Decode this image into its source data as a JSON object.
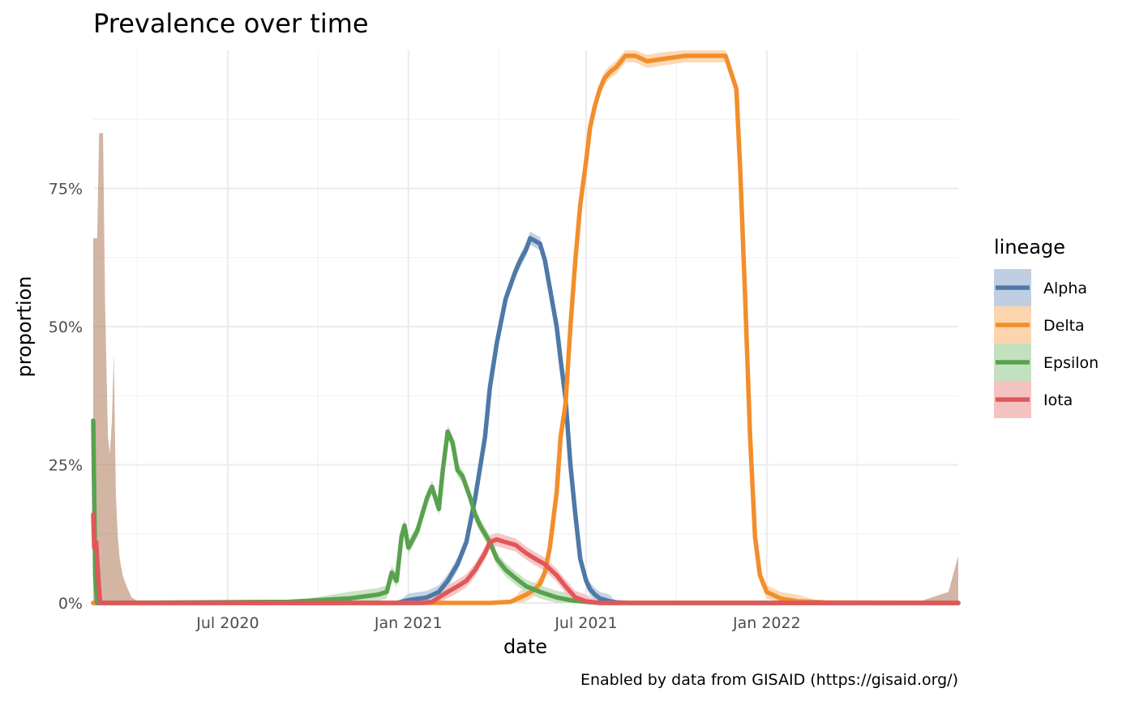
{
  "chart_data": {
    "type": "line",
    "title": "Prevalence over time",
    "xlabel": "date",
    "ylabel": "proportion",
    "caption": "Enabled by data from GISAID (https://gisaid.org/)",
    "legend": {
      "title": "lineage",
      "position": "right"
    },
    "grid": true,
    "x_range": [
      "2020-02-15",
      "2022-07-15"
    ],
    "ylim": [
      0,
      1
    ],
    "x_ticks": [
      {
        "date": "2020-07-01",
        "label": "Jul 2020"
      },
      {
        "date": "2021-01-01",
        "label": "Jan 2021"
      },
      {
        "date": "2021-07-01",
        "label": "Jul 2021"
      },
      {
        "date": "2022-01-01",
        "label": "Jan 2022"
      }
    ],
    "y_ticks": [
      {
        "value": 0,
        "label": "0%"
      },
      {
        "value": 0.25,
        "label": "25%"
      },
      {
        "value": 0.5,
        "label": "50%"
      },
      {
        "value": 0.75,
        "label": "75%"
      }
    ],
    "background_area": {
      "color": "#b58368",
      "x": [
        "2020-02-15",
        "2020-02-17",
        "2020-02-19",
        "2020-02-21",
        "2020-02-23",
        "2020-02-25",
        "2020-02-27",
        "2020-03-01",
        "2020-03-03",
        "2020-03-05",
        "2020-03-07",
        "2020-03-09",
        "2020-03-11",
        "2020-03-13",
        "2020-03-16",
        "2020-03-20",
        "2020-03-25",
        "2020-04-01",
        "2020-04-15",
        "2022-06-01",
        "2022-07-05",
        "2022-07-15"
      ],
      "y": [
        0.66,
        0.66,
        0.66,
        0.85,
        0.85,
        0.85,
        0.55,
        0.3,
        0.27,
        0.33,
        0.45,
        0.2,
        0.12,
        0.08,
        0.05,
        0.03,
        0.01,
        0.003,
        0.0,
        0.0,
        0.02,
        0.085
      ]
    },
    "series": [
      {
        "name": "Alpha",
        "color": "#4e79a7",
        "ribbon_color": "#bfcfe1",
        "x": [
          "2020-02-15",
          "2020-12-20",
          "2021-01-01",
          "2021-01-20",
          "2021-02-01",
          "2021-02-10",
          "2021-02-20",
          "2021-03-01",
          "2021-03-10",
          "2021-03-20",
          "2021-03-25",
          "2021-04-01",
          "2021-04-10",
          "2021-04-20",
          "2021-04-25",
          "2021-05-01",
          "2021-05-05",
          "2021-05-15",
          "2021-05-20",
          "2021-05-25",
          "2021-06-01",
          "2021-06-05",
          "2021-06-10",
          "2021-06-15",
          "2021-06-20",
          "2021-06-25",
          "2021-07-01",
          "2021-07-05",
          "2021-07-10",
          "2021-07-15",
          "2021-07-25",
          "2021-08-01",
          "2021-08-15",
          "2021-09-01",
          "2022-07-15"
        ],
        "y": [
          0.0,
          0.0,
          0.005,
          0.01,
          0.02,
          0.04,
          0.07,
          0.11,
          0.19,
          0.3,
          0.39,
          0.47,
          0.55,
          0.6,
          0.62,
          0.64,
          0.66,
          0.65,
          0.62,
          0.57,
          0.5,
          0.44,
          0.37,
          0.25,
          0.16,
          0.08,
          0.04,
          0.025,
          0.015,
          0.008,
          0.003,
          0.001,
          0.0,
          0.0,
          0.0
        ]
      },
      {
        "name": "Delta",
        "color": "#f28e2b",
        "ribbon_color": "#fcd5ae",
        "x": [
          "2020-02-15",
          "2021-03-25",
          "2021-04-15",
          "2021-04-25",
          "2021-05-01",
          "2021-05-10",
          "2021-05-15",
          "2021-05-20",
          "2021-05-25",
          "2021-06-01",
          "2021-06-05",
          "2021-06-10",
          "2021-06-15",
          "2021-06-20",
          "2021-06-25",
          "2021-07-01",
          "2021-07-05",
          "2021-07-10",
          "2021-07-15",
          "2021-07-20",
          "2021-07-25",
          "2021-08-01",
          "2021-08-10",
          "2021-08-20",
          "2021-09-01",
          "2021-09-20",
          "2021-10-10",
          "2021-11-01",
          "2021-11-20",
          "2021-12-01",
          "2021-12-05",
          "2021-12-10",
          "2021-12-15",
          "2021-12-20",
          "2021-12-25",
          "2022-01-01",
          "2022-01-15",
          "2022-02-01",
          "2022-03-01",
          "2022-07-15"
        ],
        "y": [
          0.0,
          0.0,
          0.002,
          0.01,
          0.015,
          0.025,
          0.035,
          0.055,
          0.1,
          0.2,
          0.3,
          0.36,
          0.5,
          0.62,
          0.72,
          0.8,
          0.86,
          0.9,
          0.93,
          0.95,
          0.96,
          0.97,
          0.99,
          0.99,
          0.98,
          0.985,
          0.99,
          0.99,
          0.99,
          0.93,
          0.78,
          0.55,
          0.3,
          0.12,
          0.05,
          0.02,
          0.008,
          0.003,
          0.001,
          0.0
        ]
      },
      {
        "name": "Epsilon",
        "color": "#59a14f",
        "ribbon_color": "#c4e1bf",
        "x": [
          "2020-02-15",
          "2020-02-17",
          "2020-02-19",
          "2020-09-01",
          "2020-11-01",
          "2020-12-01",
          "2020-12-10",
          "2020-12-15",
          "2020-12-20",
          "2020-12-25",
          "2020-12-28",
          "2021-01-01",
          "2021-01-10",
          "2021-01-15",
          "2021-01-20",
          "2021-01-25",
          "2021-02-01",
          "2021-02-05",
          "2021-02-10",
          "2021-02-15",
          "2021-02-20",
          "2021-02-25",
          "2021-03-01",
          "2021-03-05",
          "2021-03-10",
          "2021-03-15",
          "2021-03-25",
          "2021-04-01",
          "2021-04-10",
          "2021-04-20",
          "2021-05-01",
          "2021-05-15",
          "2021-06-01",
          "2021-06-15",
          "2021-07-01",
          "2021-07-15",
          "2022-07-15"
        ],
        "y": [
          0.33,
          0.05,
          0.0,
          0.002,
          0.008,
          0.015,
          0.02,
          0.055,
          0.04,
          0.12,
          0.14,
          0.1,
          0.13,
          0.16,
          0.19,
          0.21,
          0.17,
          0.24,
          0.31,
          0.29,
          0.24,
          0.23,
          0.21,
          0.19,
          0.16,
          0.14,
          0.11,
          0.08,
          0.06,
          0.045,
          0.03,
          0.02,
          0.01,
          0.005,
          0.002,
          0.0,
          0.0
        ]
      },
      {
        "name": "Iota",
        "color": "#e15759",
        "ribbon_color": "#f5c2c2",
        "x": [
          "2020-02-15",
          "2020-02-16",
          "2020-02-18",
          "2020-02-20",
          "2020-02-22",
          "2020-02-24",
          "2020-02-26",
          "2021-01-15",
          "2021-01-25",
          "2021-02-01",
          "2021-02-10",
          "2021-02-20",
          "2021-03-01",
          "2021-03-10",
          "2021-03-20",
          "2021-03-25",
          "2021-04-01",
          "2021-04-10",
          "2021-04-20",
          "2021-05-01",
          "2021-05-10",
          "2021-05-20",
          "2021-06-01",
          "2021-06-10",
          "2021-06-20",
          "2021-07-01",
          "2021-07-15",
          "2022-07-15"
        ],
        "y": [
          0.16,
          0.1,
          0.11,
          0.05,
          0.0,
          0.0,
          0.0,
          0.0,
          0.002,
          0.01,
          0.02,
          0.03,
          0.04,
          0.06,
          0.09,
          0.11,
          0.115,
          0.11,
          0.105,
          0.09,
          0.08,
          0.07,
          0.05,
          0.03,
          0.01,
          0.003,
          0.0,
          0.0
        ]
      }
    ]
  }
}
